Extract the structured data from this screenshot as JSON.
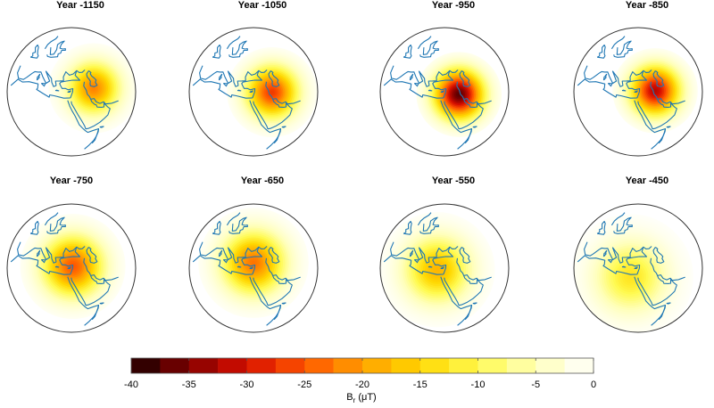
{
  "panels": [
    {
      "title": "Year -1150",
      "anomaly": {
        "lon": 51,
        "lat": 36,
        "peak": -22,
        "spread": 0.9
      }
    },
    {
      "title": "Year -1050",
      "anomaly": {
        "lon": 48,
        "lat": 34,
        "peak": -27,
        "spread": 0.9
      }
    },
    {
      "title": "Year -950",
      "anomaly": {
        "lon": 45,
        "lat": 33,
        "peak": -37,
        "spread": 0.85
      }
    },
    {
      "title": "Year -850",
      "anomaly": {
        "lon": 47,
        "lat": 35,
        "peak": -32,
        "spread": 0.85
      }
    },
    {
      "title": "Year -750",
      "anomaly": {
        "lon": 36,
        "lat": 36,
        "peak": -25,
        "spread": 1.05
      }
    },
    {
      "title": "Year -650",
      "anomaly": {
        "lon": 35,
        "lat": 38,
        "peak": -23,
        "spread": 1.1
      }
    },
    {
      "title": "Year -550",
      "anomaly": {
        "lon": 30,
        "lat": 34,
        "peak": -18,
        "spread": 1.15
      }
    },
    {
      "title": "Year -450",
      "anomaly": {
        "lon": 30,
        "lat": 30,
        "peak": -13,
        "spread": 1.25
      }
    }
  ],
  "colorbar": {
    "ticks": [
      "-40",
      "-35",
      "-30",
      "-25",
      "-20",
      "-15",
      "-10",
      "-5",
      "0"
    ],
    "label_main": "B",
    "label_sub": "r",
    "label_unit": " (μT)",
    "min": -40,
    "max": 0
  },
  "colors": {
    "coastline": "#1f77b4",
    "outline": "#333333"
  }
}
